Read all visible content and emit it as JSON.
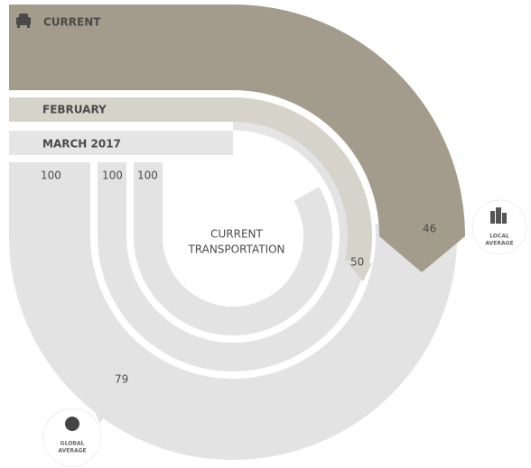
{
  "bands": [
    {
      "label": "CURRENT",
      "value": "46"
    },
    {
      "label": "FEBRUARY",
      "value": "50"
    },
    {
      "label": "MARCH 2017"
    }
  ],
  "start_values": [
    "100",
    "100",
    "100"
  ],
  "center": [
    "CURRENT",
    "TRANSPORTATION"
  ],
  "global": {
    "value": "79",
    "label": [
      "GLOBAL",
      "AVERAGE"
    ]
  },
  "local": {
    "label": [
      "LOCAL",
      "AVERAGE"
    ]
  }
}
